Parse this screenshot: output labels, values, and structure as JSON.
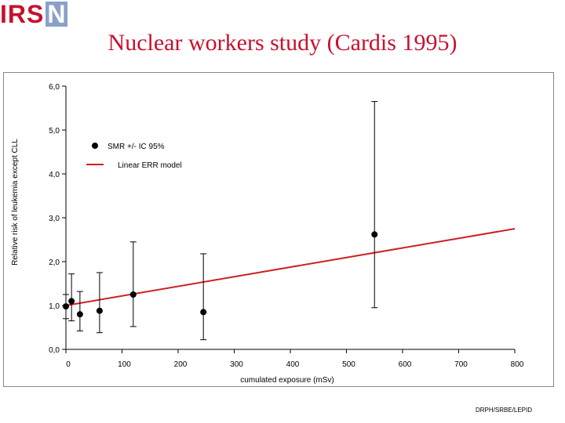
{
  "header": {
    "logo_text": "IRS",
    "logo_box_text": "N",
    "title": "Nuclear workers study (Cardis 1995)"
  },
  "footer": {
    "credit": "DRPH/SRBE/LEPID"
  },
  "colors": {
    "title": "#c8102e",
    "line": "#cc2222",
    "points": "#000000"
  },
  "chart_data": {
    "type": "scatter",
    "xlabel": "cumulated exposure (mSv)",
    "ylabel": "Relative risk of leukemia except CLL",
    "xlim": [
      0,
      800
    ],
    "ylim": [
      0,
      6
    ],
    "x_ticks": [
      "0",
      "100",
      "200",
      "300",
      "400",
      "500",
      "600",
      "700",
      "800"
    ],
    "y_ticks": [
      "0,0",
      "1,0",
      "2,0",
      "3,0",
      "4,0",
      "5,0",
      "6,0"
    ],
    "grid": false,
    "legend_position": "top-left",
    "legend": [
      {
        "label": "SMR +/- IC 95%",
        "kind": "marker"
      },
      {
        "label": "Linear ERR model",
        "kind": "line"
      }
    ],
    "series": [
      {
        "name": "SMR +/- IC 95%",
        "points": [
          {
            "x": 0,
            "y": 0.98,
            "low": 0.7,
            "high": 1.25
          },
          {
            "x": 10,
            "y": 1.1,
            "low": 0.65,
            "high": 1.72
          },
          {
            "x": 25,
            "y": 0.8,
            "low": 0.42,
            "high": 1.32
          },
          {
            "x": 60,
            "y": 0.88,
            "low": 0.38,
            "high": 1.75
          },
          {
            "x": 120,
            "y": 1.25,
            "low": 0.52,
            "high": 2.45
          },
          {
            "x": 245,
            "y": 0.85,
            "low": 0.22,
            "high": 2.18
          },
          {
            "x": 550,
            "y": 2.62,
            "low": 0.95,
            "high": 5.65
          }
        ]
      },
      {
        "name": "Linear ERR model",
        "line": [
          {
            "x": 0,
            "y": 1.0
          },
          {
            "x": 800,
            "y": 2.75
          }
        ]
      }
    ]
  }
}
